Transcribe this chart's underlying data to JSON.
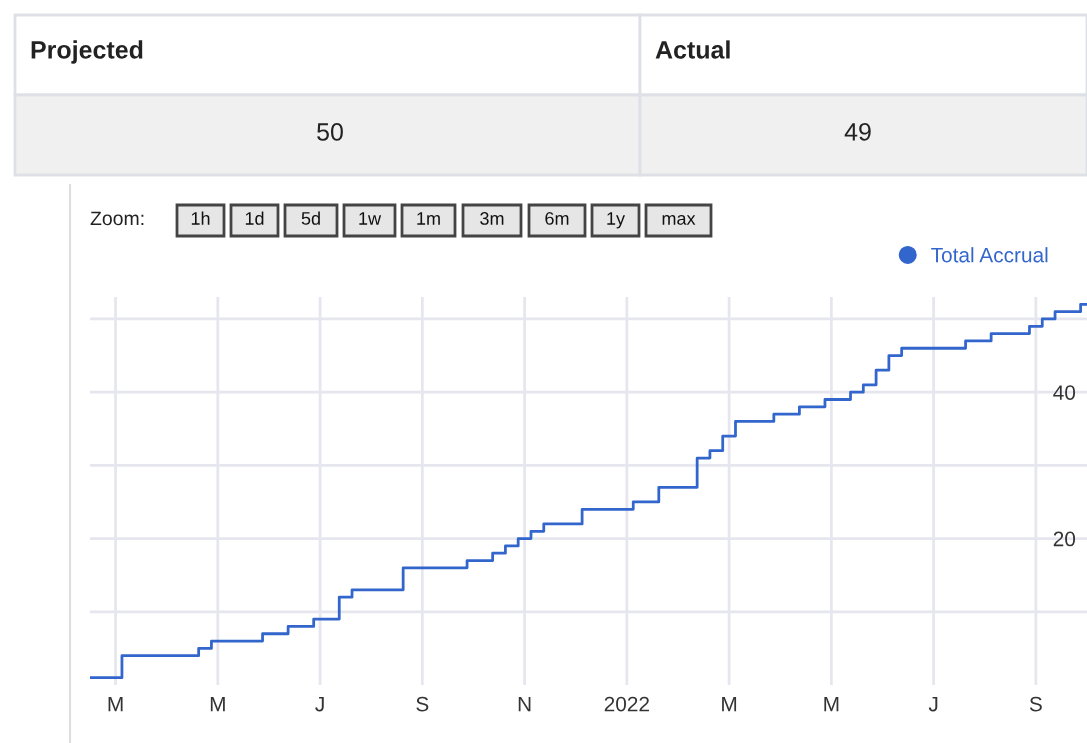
{
  "chart_data": {
    "type": "step",
    "annotations": [
      "Projected",
      "Actual",
      "50",
      "49",
      "Zoom:",
      "1h",
      "1d",
      "5d",
      "1w",
      "1m",
      "3m",
      "6m",
      "1y",
      "max"
    ],
    "categories": [
      null,
      null,
      "M",
      null,
      null,
      null,
      null,
      null,
      null,
      null,
      "M",
      null,
      null,
      null,
      null,
      null,
      null,
      null,
      "J",
      null,
      null,
      null,
      null,
      null,
      null,
      null,
      "S",
      null,
      null,
      null,
      null,
      null,
      null,
      null,
      "N",
      null,
      null,
      null,
      null,
      null,
      null,
      null,
      "2022",
      null,
      null,
      null,
      null,
      null,
      null,
      null,
      "M",
      null,
      null,
      null,
      null,
      null,
      null,
      null,
      "M",
      null,
      null,
      null,
      null,
      null,
      null,
      null,
      "J",
      null,
      null,
      null,
      null,
      null,
      null,
      null,
      "S",
      null,
      null,
      null,
      null
    ],
    "series": [
      {
        "name": "Total Accrual",
        "color": "#3366cc",
        "values": [
          1,
          1,
          1,
          4,
          4,
          4,
          4,
          4,
          4,
          5,
          6,
          6,
          6,
          6,
          7,
          7,
          8,
          8,
          9,
          9,
          12,
          13,
          13,
          13,
          13,
          16,
          16,
          16,
          16,
          16,
          17,
          17,
          18,
          19,
          20,
          21,
          22,
          22,
          22,
          24,
          24,
          24,
          24,
          25,
          25,
          27,
          27,
          27,
          31,
          32,
          34,
          36,
          36,
          36,
          37,
          37,
          38,
          38,
          39,
          39,
          40,
          41,
          43,
          45,
          46,
          46,
          46,
          46,
          46,
          47,
          47,
          48,
          48,
          48,
          49,
          50,
          51,
          51,
          52
        ]
      }
    ],
    "ylim": [
      0,
      53
    ],
    "yticks": [
      {
        "value": 10,
        "label": null
      },
      20,
      {
        "value": 30,
        "label": null
      },
      40,
      {
        "value": 50,
        "label": null
      }
    ],
    "grid": true,
    "legend": "top right",
    "marker": "none",
    "line_style": "solid"
  }
}
